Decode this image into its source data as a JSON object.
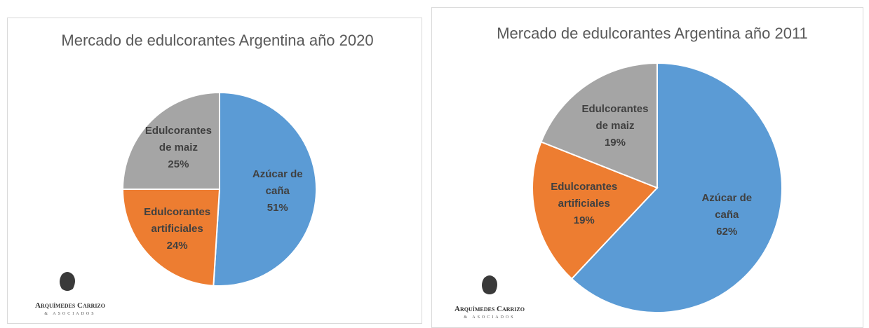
{
  "chart_data": [
    {
      "type": "pie",
      "title": "Mercado de edulcorantes Argentina año 2020",
      "categories": [
        "Azúcar de caña",
        "Edulcorantes artificiales",
        "Edulcorantes de maiz"
      ],
      "values": [
        51,
        24,
        25
      ],
      "value_labels": [
        "51%",
        "24%",
        "25%"
      ],
      "colors": [
        "#5b9bd5",
        "#ed7d31",
        "#a5a5a5"
      ]
    },
    {
      "type": "pie",
      "title": "Mercado de edulcorantes Argentina año 2011",
      "categories": [
        "Azúcar de caña",
        "Edulcorantes artificiales",
        "Edulcorantes de maiz"
      ],
      "values": [
        62,
        19,
        19
      ],
      "value_labels": [
        "62%",
        "19%",
        "19%"
      ],
      "colors": [
        "#5b9bd5",
        "#ed7d31",
        "#a5a5a5"
      ]
    }
  ],
  "logos": [
    {
      "name": "Arquímedes Carrizo",
      "tagline": "& Asociados"
    },
    {
      "name": "Arquímedes Carrizo",
      "tagline": "& Asociados"
    }
  ]
}
